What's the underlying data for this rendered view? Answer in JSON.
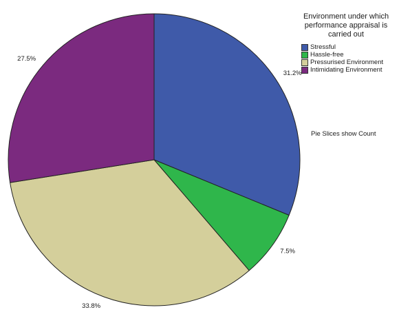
{
  "chart_data": {
    "type": "pie",
    "title": "",
    "legend_title": "Environment under which performance appraisal is carried out",
    "legend_placement": "top-right",
    "note": "Pie Slices show Count",
    "slices": [
      {
        "label": "Stressful",
        "value": 31.2,
        "display": "31.2%",
        "color": "#3f5aa9"
      },
      {
        "label": "Hassle-free",
        "value": 7.5,
        "display": "7.5%",
        "color": "#2fb64b"
      },
      {
        "label": "Pressurised Environment",
        "value": 33.8,
        "display": "33.8%",
        "color": "#d4cf9b"
      },
      {
        "label": "Intimidating Environment",
        "value": 27.5,
        "display": "27.5%",
        "color": "#7b2a7f"
      }
    ]
  }
}
